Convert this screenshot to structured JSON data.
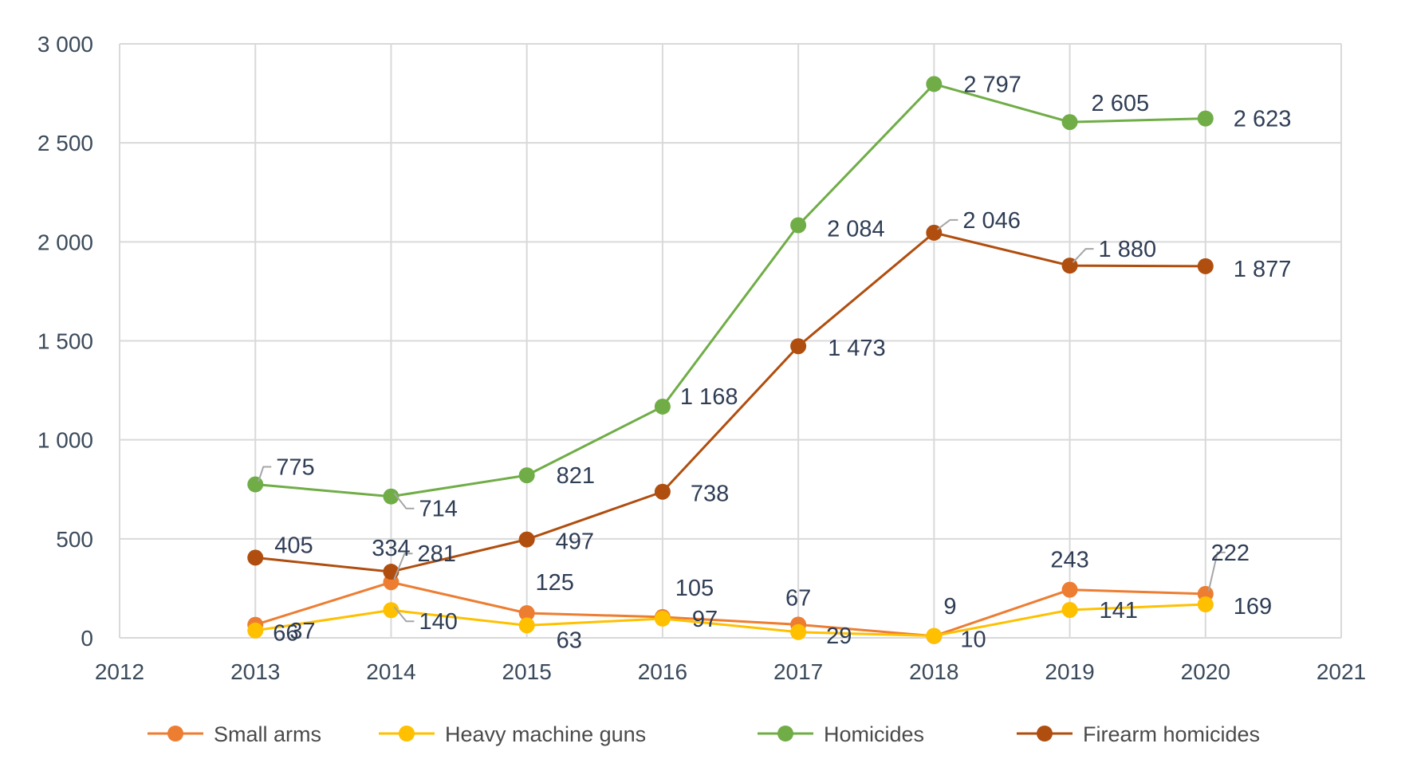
{
  "chart_data": {
    "type": "line",
    "title": "",
    "xlabel": "",
    "ylabel": "",
    "xlim": [
      2012,
      2021
    ],
    "ylim": [
      0,
      3000
    ],
    "x_ticks": [
      "2012",
      "2013",
      "2014",
      "2015",
      "2016",
      "2017",
      "2018",
      "2019",
      "2020",
      "2021"
    ],
    "y_ticks": [
      "0",
      "500",
      "1 000",
      "1 500",
      "2 000",
      "2 500",
      "3 000"
    ],
    "grid": true,
    "legend_position": "bottom",
    "x": [
      2013,
      2014,
      2015,
      2016,
      2017,
      2018,
      2019,
      2020
    ],
    "series": [
      {
        "name": "Small arms",
        "color": "#ed7d31",
        "values": [
          66,
          281,
          125,
          105,
          67,
          9,
          243,
          222
        ],
        "labels": [
          "66",
          "281",
          "125",
          "105",
          "67",
          "9",
          "243",
          "222"
        ]
      },
      {
        "name": "Heavy machine guns",
        "color": "#ffc000",
        "values": [
          37,
          140,
          63,
          97,
          29,
          10,
          141,
          169
        ],
        "labels": [
          "37",
          "140",
          "63",
          "97",
          "29",
          "10",
          "141",
          "169"
        ]
      },
      {
        "name": "Homicides",
        "color": "#70ad47",
        "values": [
          775,
          714,
          821,
          1168,
          2084,
          2797,
          2605,
          2623
        ],
        "labels": [
          "775",
          "714",
          "821",
          "1 168",
          "2 084",
          "2 797",
          "2 605",
          "2 623"
        ]
      },
      {
        "name": "Firearm homicides",
        "color": "#b04e0f",
        "values": [
          405,
          334,
          497,
          738,
          1473,
          2046,
          1880,
          1877
        ],
        "labels": [
          "405",
          "334",
          "497",
          "738",
          "1 473",
          "2 046",
          "1 880",
          "1 877"
        ]
      }
    ]
  }
}
